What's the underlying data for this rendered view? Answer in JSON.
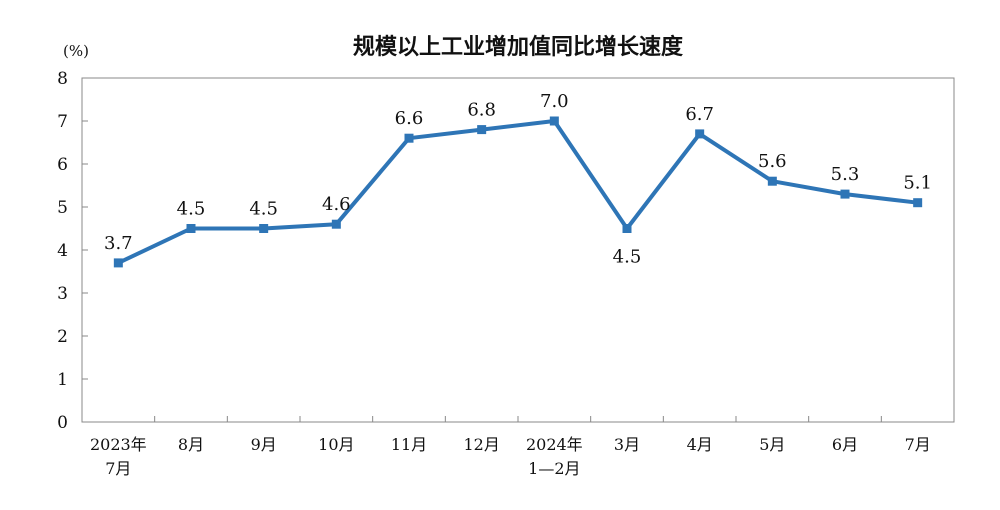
{
  "chart_data": {
    "type": "line",
    "title": "规模以上工业增加值同比增长速度",
    "yunit": "(%)",
    "ylim": [
      0,
      8
    ],
    "yticks": [
      "0",
      "1",
      "2",
      "3",
      "4",
      "5",
      "6",
      "7",
      "8"
    ],
    "categories": [
      [
        "2023年",
        "7月"
      ],
      [
        "8月"
      ],
      [
        "9月"
      ],
      [
        "10月"
      ],
      [
        "11月"
      ],
      [
        "12月"
      ],
      [
        "2024年",
        "1—2月"
      ],
      [
        "3月"
      ],
      [
        "4月"
      ],
      [
        "5月"
      ],
      [
        "6月"
      ],
      [
        "7月"
      ]
    ],
    "values": [
      3.7,
      4.5,
      4.5,
      4.6,
      6.6,
      6.8,
      7.0,
      4.5,
      6.7,
      5.6,
      5.3,
      5.1
    ],
    "data_labels": [
      "3.7",
      "4.5",
      "4.5",
      "4.6",
      "6.6",
      "6.8",
      "7.0",
      "4.5",
      "6.7",
      "5.6",
      "5.3",
      "5.1"
    ],
    "line_color": "#2e75b6",
    "grid": false,
    "legend": "none"
  }
}
